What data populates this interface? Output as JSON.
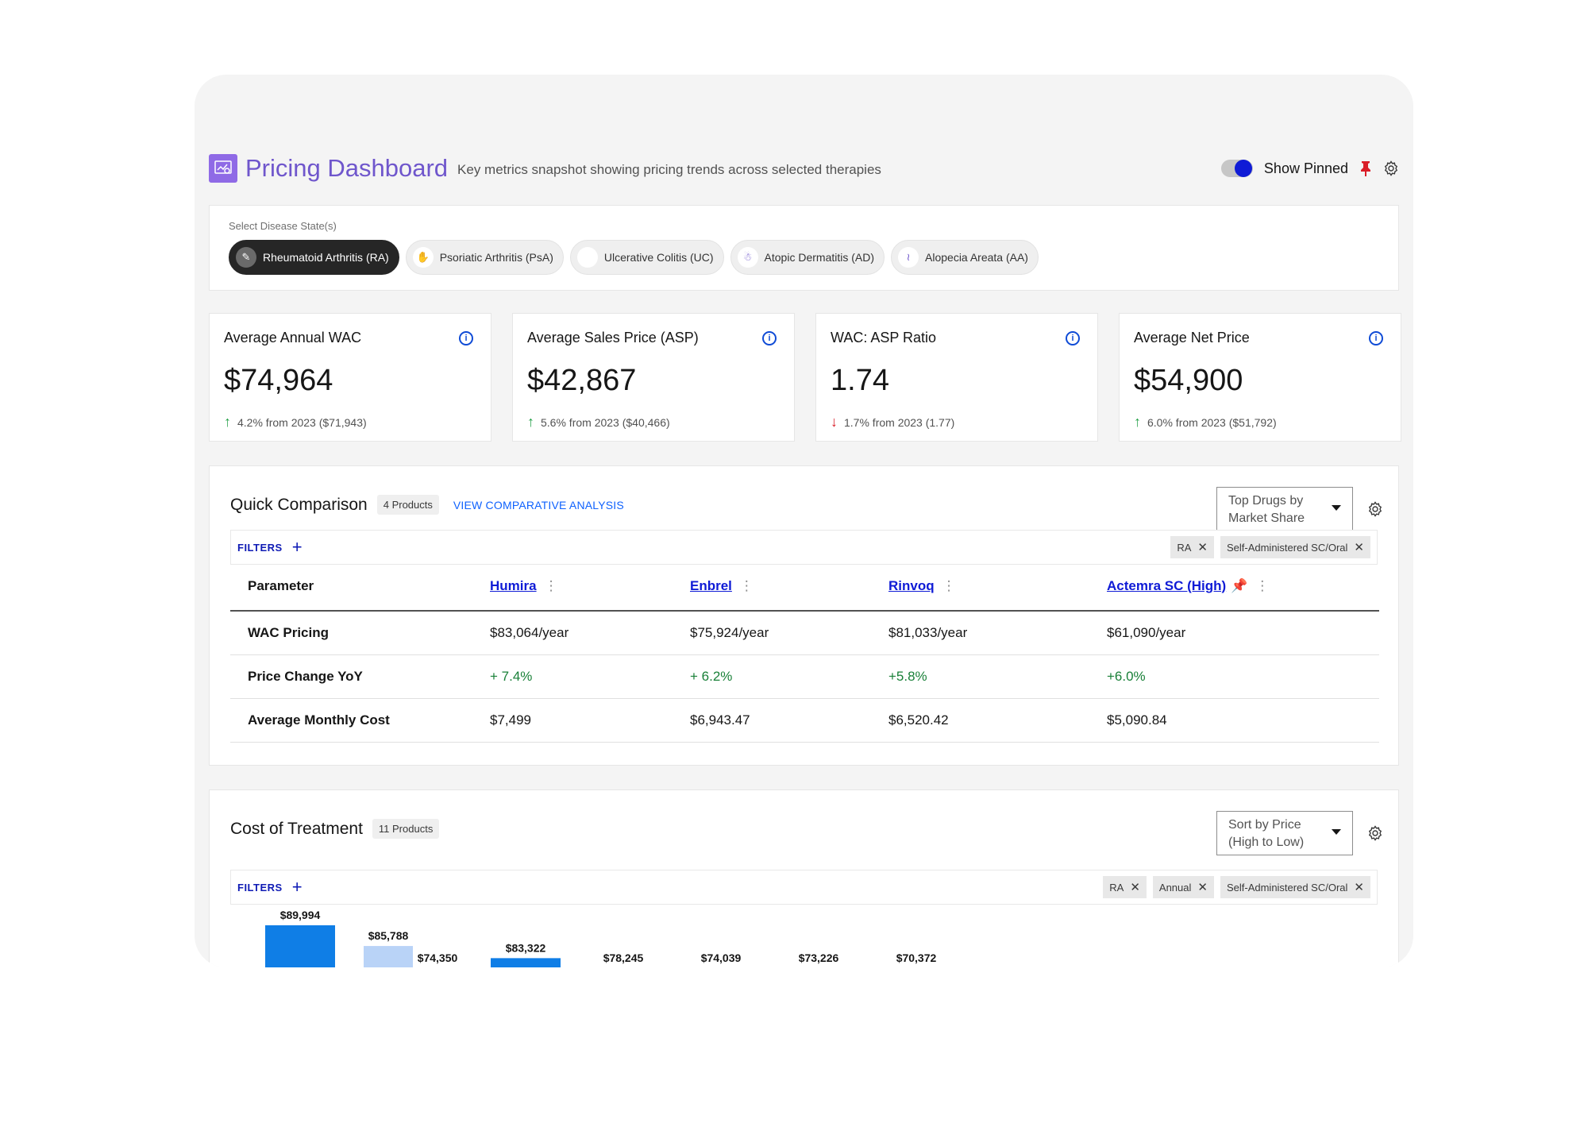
{
  "header": {
    "title": "Pricing Dashboard",
    "subtitle": "Key metrics snapshot showing pricing trends across selected therapies",
    "show_pinned_label": "Show Pinned"
  },
  "disease_states": {
    "label": "Select Disease State(s)",
    "chips": [
      {
        "label": "Rheumatoid Arthritis (RA)",
        "icon": "ra-icon",
        "active": true
      },
      {
        "label": "Psoriatic Arthritis (PsA)",
        "icon": "psa-icon",
        "active": false
      },
      {
        "label": "Ulcerative Colitis (UC)",
        "icon": "uc-icon",
        "active": false
      },
      {
        "label": "Atopic Dermatitis (AD)",
        "icon": "ad-icon",
        "active": false
      },
      {
        "label": "Alopecia Areata (AA)",
        "icon": "aa-icon",
        "active": false
      }
    ]
  },
  "metrics": [
    {
      "title": "Average Annual WAC",
      "value": "$74,964",
      "change": "4.2% from 2023 ($71,943)",
      "direction": "up"
    },
    {
      "title": "Average Sales Price (ASP)",
      "value": "$42,867",
      "change": "5.6% from 2023 ($40,466)",
      "direction": "up"
    },
    {
      "title": "WAC: ASP Ratio",
      "value": "1.74",
      "change": "1.7% from 2023 (1.77)",
      "direction": "down"
    },
    {
      "title": "Average Net Price",
      "value": "$54,900",
      "change": "6.0% from 2023 ($51,792)",
      "direction": "up"
    }
  ],
  "quick_comparison": {
    "title": "Quick Comparison",
    "badge": "4 Products",
    "link": "VIEW COMPARATIVE ANALYSIS",
    "dropdown_line1": "Top Drugs by",
    "dropdown_line2": "Market Share",
    "filters_label": "FILTERS",
    "tags": [
      "RA",
      "Self-Administered SC/Oral"
    ],
    "columns": [
      "Parameter",
      "Humira",
      "Enbrel",
      "Rinvoq",
      "Actemra SC (High)"
    ],
    "rows": [
      {
        "param": "WAC Pricing",
        "values": [
          "$83,064/year",
          "$75,924/year",
          "$81,033/year",
          "$61,090/year"
        ]
      },
      {
        "param": "Price Change YoY",
        "values": [
          "+ 7.4%",
          "+ 6.2%",
          "+5.8%",
          "+6.0%"
        ]
      },
      {
        "param": "Average Monthly Cost",
        "values": [
          "$7,499",
          "$6,943.47",
          "$6,520.42",
          "$5,090.84"
        ]
      }
    ]
  },
  "cost_of_treatment": {
    "title": "Cost of Treatment",
    "badge": "11 Products",
    "dropdown_line1": "Sort by Price",
    "dropdown_line2": "(High to Low)",
    "filters_label": "FILTERS",
    "tags": [
      "RA",
      "Annual",
      "Self-Administered SC/Oral"
    ]
  },
  "chart_data": {
    "type": "bar",
    "title": "",
    "xlabel": "",
    "ylabel": "",
    "values": [
      89994,
      85788,
      74350,
      83322,
      78245,
      74039,
      73226,
      70372
    ],
    "labels": [
      "$89,994",
      "$85,788",
      "$74,350",
      "$83,322",
      "$78,245",
      "$74,039",
      "$73,226",
      "$70,372"
    ],
    "colors": [
      "#0f7ee6",
      "#b9d3f7",
      "#0f7ee6",
      "#0f7ee6",
      "#0f7ee6",
      "#0f7ee6",
      "#6fb0f0",
      "#0f7ee6"
    ]
  }
}
